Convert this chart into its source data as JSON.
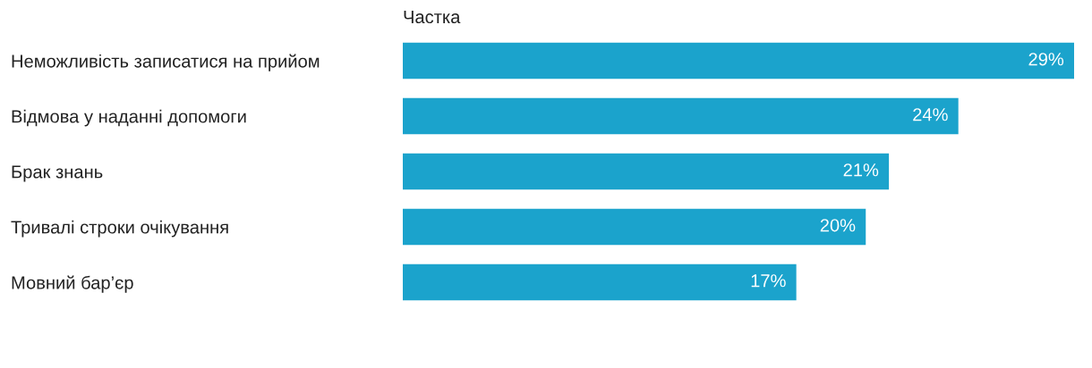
{
  "chart_data": {
    "type": "bar",
    "orientation": "horizontal",
    "xlabel": "Частка",
    "categories": [
      "Неможливість записатися на прийом",
      "Відмова у наданні допомоги",
      "Брак знань",
      "Тривалі строки очікування",
      "Мовний бар’єр"
    ],
    "values": [
      29,
      24,
      21,
      20,
      17
    ],
    "value_labels": [
      "29%",
      "24%",
      "21%",
      "20%",
      "17%"
    ],
    "color": "#1ba3cc",
    "grid": false,
    "legend": false
  }
}
